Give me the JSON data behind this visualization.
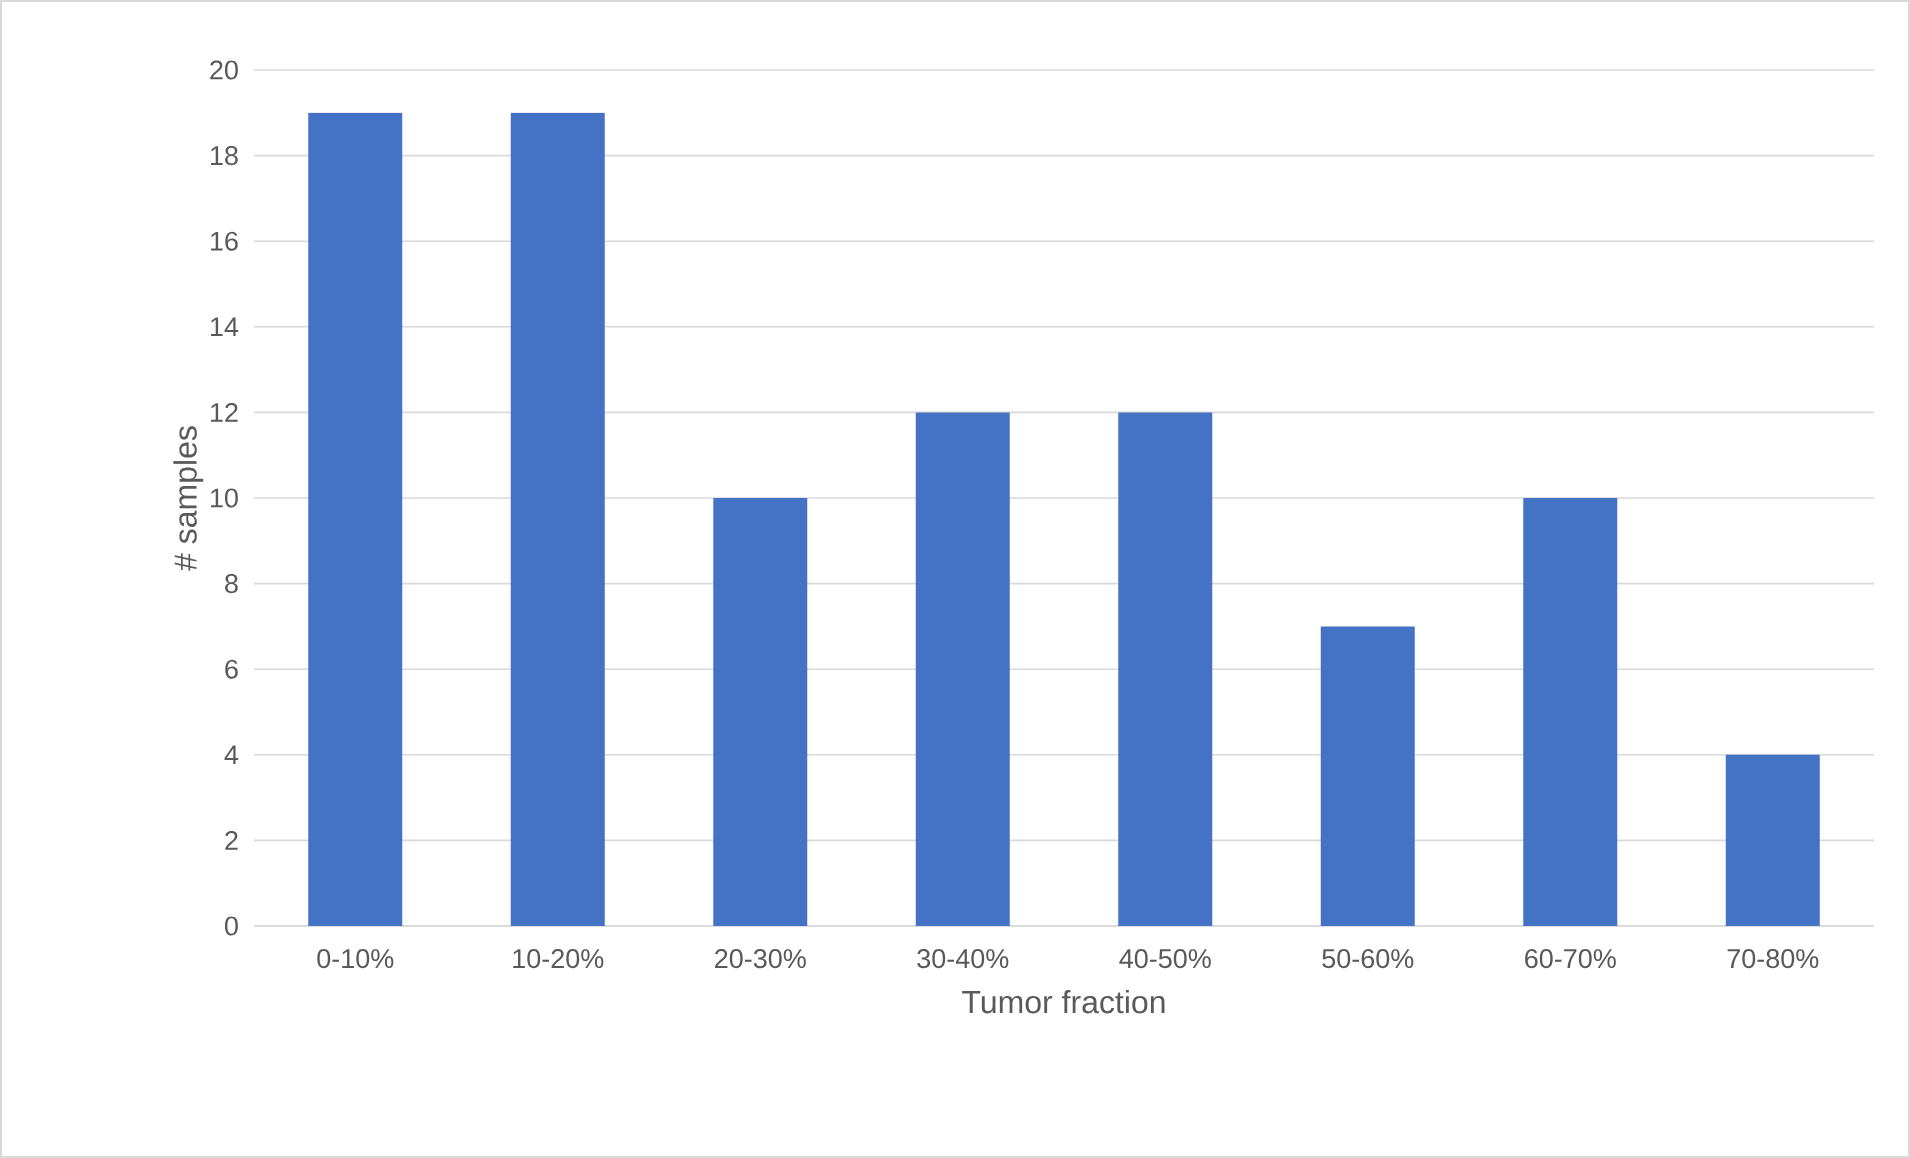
{
  "chart_data": {
    "type": "bar",
    "xlabel": "Tumor fraction",
    "ylabel": "# samples",
    "categories": [
      "0-10%",
      "10-20%",
      "20-30%",
      "30-40%",
      "40-50%",
      "50-60%",
      "60-70%",
      "70-80%"
    ],
    "values": [
      19,
      19,
      10,
      12,
      12,
      7,
      10,
      4
    ],
    "color": "#4472c4",
    "ylim": [
      0,
      20
    ],
    "yticks": [
      0,
      2,
      4,
      6,
      8,
      10,
      12,
      14,
      16,
      18,
      20
    ],
    "grid": "y"
  }
}
